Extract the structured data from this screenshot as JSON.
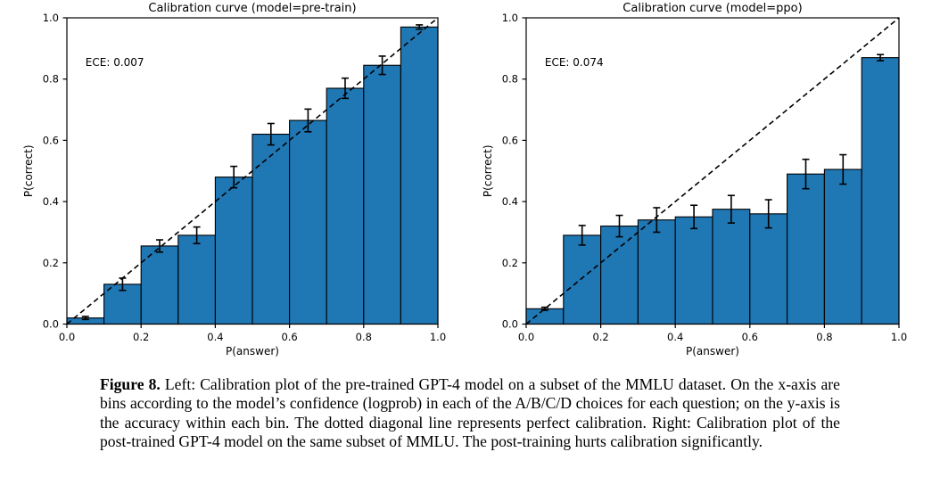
{
  "colors": {
    "bar_fill": "#1f77b4",
    "bar_edge": "#000000",
    "diagonal_line": "#000000",
    "error_bar": "#000000",
    "axis": "#000000",
    "text": "#000000"
  },
  "chart_data": [
    {
      "type": "bar",
      "title": "Calibration curve (model=pre-train)",
      "annotation": "ECE: 0.007",
      "xlabel": "P(answer)",
      "ylabel": "P(correct)",
      "xlim": [
        0.0,
        1.0
      ],
      "ylim": [
        0.0,
        1.0
      ],
      "x_tick_labels": [
        "0.0",
        "0.2",
        "0.4",
        "0.6",
        "0.8",
        "1.0"
      ],
      "y_tick_labels": [
        "0.0",
        "0.2",
        "0.4",
        "0.6",
        "0.8",
        "1.0"
      ],
      "tick_values": [
        0.0,
        0.2,
        0.4,
        0.6,
        0.8,
        1.0
      ],
      "bin_edges": [
        0.0,
        0.1,
        0.2,
        0.3,
        0.4,
        0.5,
        0.6,
        0.7,
        0.8,
        0.9,
        1.0
      ],
      "values": [
        0.02,
        0.13,
        0.255,
        0.29,
        0.48,
        0.62,
        0.665,
        0.77,
        0.845,
        0.97
      ],
      "errors": [
        0.005,
        0.02,
        0.02,
        0.027,
        0.035,
        0.035,
        0.037,
        0.033,
        0.03,
        0.007
      ],
      "diagonal_reference_line": true,
      "grid": false
    },
    {
      "type": "bar",
      "title": "Calibration curve (model=ppo)",
      "annotation": "ECE: 0.074",
      "xlabel": "P(answer)",
      "ylabel": "P(correct)",
      "xlim": [
        0.0,
        1.0
      ],
      "ylim": [
        0.0,
        1.0
      ],
      "x_tick_labels": [
        "0.0",
        "0.2",
        "0.4",
        "0.6",
        "0.8",
        "1.0"
      ],
      "y_tick_labels": [
        "0.0",
        "0.2",
        "0.4",
        "0.6",
        "0.8",
        "1.0"
      ],
      "tick_values": [
        0.0,
        0.2,
        0.4,
        0.6,
        0.8,
        1.0
      ],
      "bin_edges": [
        0.0,
        0.1,
        0.2,
        0.3,
        0.4,
        0.5,
        0.6,
        0.7,
        0.8,
        0.9,
        1.0
      ],
      "values": [
        0.05,
        0.29,
        0.32,
        0.34,
        0.35,
        0.375,
        0.36,
        0.49,
        0.505,
        0.87
      ],
      "errors": [
        0.005,
        0.032,
        0.035,
        0.04,
        0.038,
        0.045,
        0.046,
        0.048,
        0.048,
        0.01
      ],
      "diagonal_reference_line": true,
      "grid": false
    }
  ],
  "caption": {
    "label": "Figure 8.",
    "text": " Left: Calibration plot of the pre-trained GPT-4 model on a subset of the MMLU dataset. On the x-axis are bins according to the model’s confidence (logprob) in each of the A/B/C/D choices for each question; on the y-axis is the accuracy within each bin. The dotted diagonal line represents perfect calibration. Right: Calibration plot of the post-trained GPT-4 model on the same subset of MMLU. The post-training hurts calibration significantly."
  }
}
